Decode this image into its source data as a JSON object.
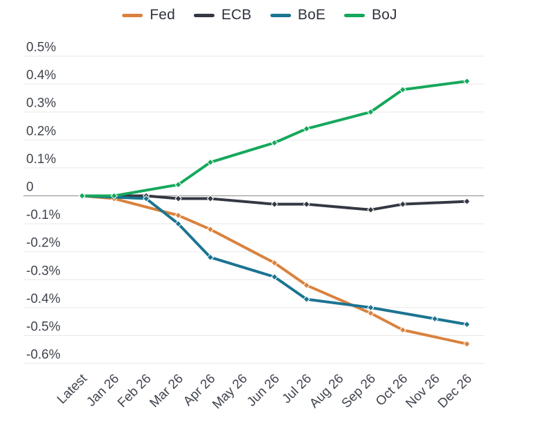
{
  "chart_data": {
    "type": "line",
    "title": "",
    "xlabel": "",
    "ylabel": "",
    "unit": "%",
    "grid": true,
    "legend_position": "top",
    "ylim": [
      -0.65,
      0.55
    ],
    "categories": [
      "Latest",
      "Jan 26",
      "Feb 26",
      "Mar 26",
      "Apr 26",
      "May 26",
      "Jun 26",
      "Jul 26",
      "Aug 26",
      "Sep 26",
      "Oct 26",
      "Nov 26",
      "Dec 26"
    ],
    "yticks": [
      {
        "value": 0.5,
        "label": "0.5%"
      },
      {
        "value": 0.4,
        "label": "0.4%"
      },
      {
        "value": 0.3,
        "label": "0.3%"
      },
      {
        "value": 0.2,
        "label": "0.2%"
      },
      {
        "value": 0.1,
        "label": "0.1%"
      },
      {
        "value": 0,
        "label": "0"
      },
      {
        "value": -0.1,
        "label": "-0.1%"
      },
      {
        "value": -0.2,
        "label": "-0.2%"
      },
      {
        "value": -0.3,
        "label": "-0.3%"
      },
      {
        "value": -0.4,
        "label": "-0.4%"
      },
      {
        "value": -0.5,
        "label": "-0.5%"
      },
      {
        "value": -0.6,
        "label": "-0.6%"
      }
    ],
    "series": [
      {
        "name": "Fed",
        "color": "#d9823e",
        "marker": "diamond",
        "values": [
          0,
          -0.01,
          null,
          -0.07,
          -0.12,
          null,
          -0.24,
          -0.32,
          null,
          -0.42,
          -0.48,
          null,
          -0.53
        ]
      },
      {
        "name": "ECB",
        "color": "#343842",
        "marker": "diamond",
        "values": [
          0,
          null,
          0,
          -0.01,
          -0.01,
          null,
          -0.03,
          -0.03,
          null,
          -0.05,
          -0.03,
          null,
          -0.02
        ]
      },
      {
        "name": "BoE",
        "color": "#1b7491",
        "marker": "diamond",
        "values": [
          0,
          null,
          -0.01,
          -0.1,
          -0.22,
          null,
          -0.29,
          -0.37,
          null,
          -0.4,
          null,
          -0.44,
          -0.46
        ]
      },
      {
        "name": "BoJ",
        "color": "#15a85c",
        "marker": "diamond",
        "values": [
          0,
          0,
          null,
          0.04,
          0.12,
          null,
          0.19,
          0.24,
          null,
          0.3,
          0.38,
          null,
          0.41
        ]
      }
    ],
    "colors": {
      "gridline": "#e8e8e8",
      "zero_line": "#8a8a8a",
      "axis_text": "#3f444e",
      "legend_text": "#2e323c",
      "background": "#ffffff"
    }
  }
}
